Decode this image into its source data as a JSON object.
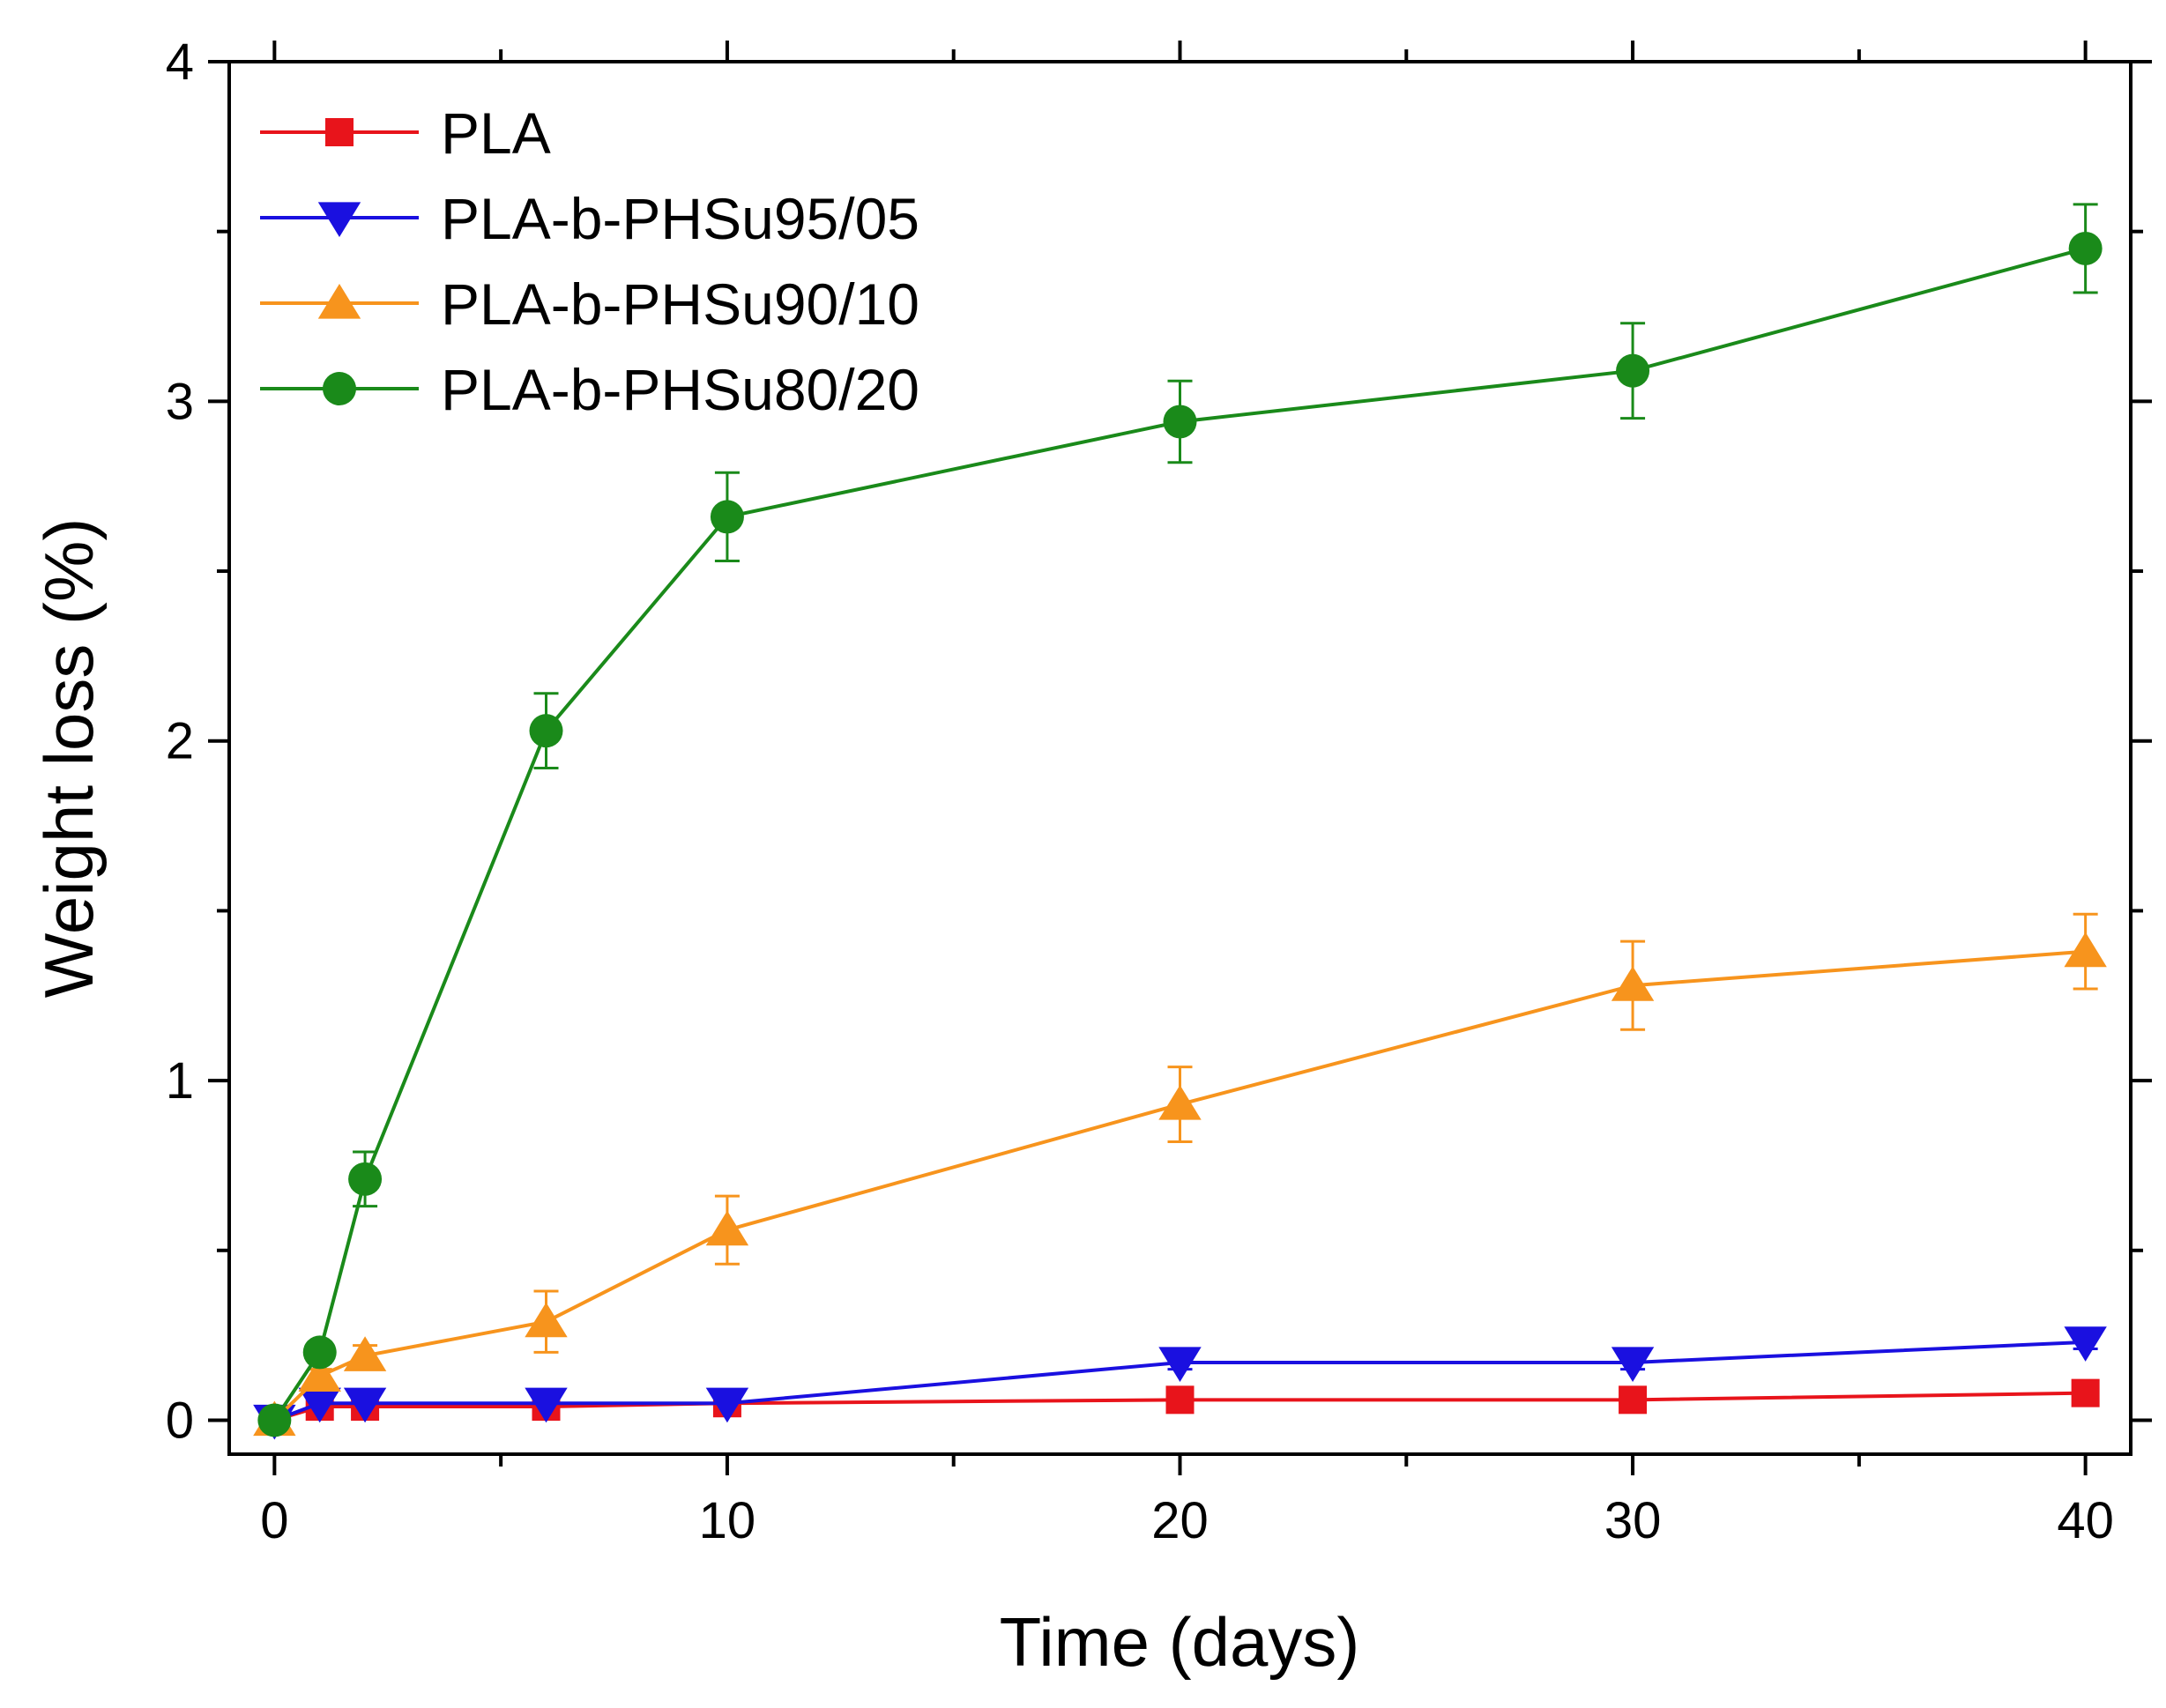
{
  "chart_data": {
    "type": "line",
    "title": "",
    "xlabel": "Time (days)",
    "ylabel": "Weight loss (%)",
    "xlim": [
      -1,
      41
    ],
    "ylim": [
      -0.1,
      4
    ],
    "x_ticks": [
      0,
      10,
      20,
      30,
      40
    ],
    "y_ticks": [
      0,
      1,
      2,
      3,
      4
    ],
    "grid": false,
    "legend_position": "top-left",
    "series": [
      {
        "name": "PLA",
        "color": "#e8141b",
        "marker": "square",
        "x": [
          0,
          1,
          2,
          6,
          10,
          20,
          30,
          40
        ],
        "y": [
          0,
          0.04,
          0.04,
          0.04,
          0.05,
          0.06,
          0.06,
          0.08
        ],
        "err": [
          0,
          0,
          0,
          0,
          0,
          0,
          0,
          0
        ]
      },
      {
        "name": "PLA-b-PHSu95/05",
        "color": "#1a10e0",
        "marker": "triangle-down",
        "x": [
          0,
          1,
          2,
          6,
          10,
          20,
          30,
          40
        ],
        "y": [
          0,
          0.05,
          0.05,
          0.05,
          0.05,
          0.17,
          0.17,
          0.23
        ],
        "err": [
          0,
          0,
          0,
          0,
          0,
          0.02,
          0.02,
          0.02
        ]
      },
      {
        "name": "PLA-b-PHSu90/10",
        "color": "#f7941d",
        "marker": "triangle-up",
        "x": [
          0,
          1,
          2,
          6,
          10,
          20,
          30,
          40
        ],
        "y": [
          0,
          0.13,
          0.19,
          0.29,
          0.56,
          0.93,
          1.28,
          1.38
        ],
        "err": [
          0,
          0.02,
          0.03,
          0.09,
          0.1,
          0.11,
          0.13,
          0.11
        ]
      },
      {
        "name": "PLA-b-PHSu80/20",
        "color": "#1a8a1a",
        "marker": "circle",
        "x": [
          0,
          1,
          2,
          6,
          10,
          20,
          30,
          40
        ],
        "y": [
          0,
          0.2,
          0.71,
          2.03,
          2.66,
          2.94,
          3.09,
          3.45
        ],
        "err": [
          0,
          0.03,
          0.08,
          0.11,
          0.13,
          0.12,
          0.14,
          0.13
        ]
      }
    ]
  }
}
